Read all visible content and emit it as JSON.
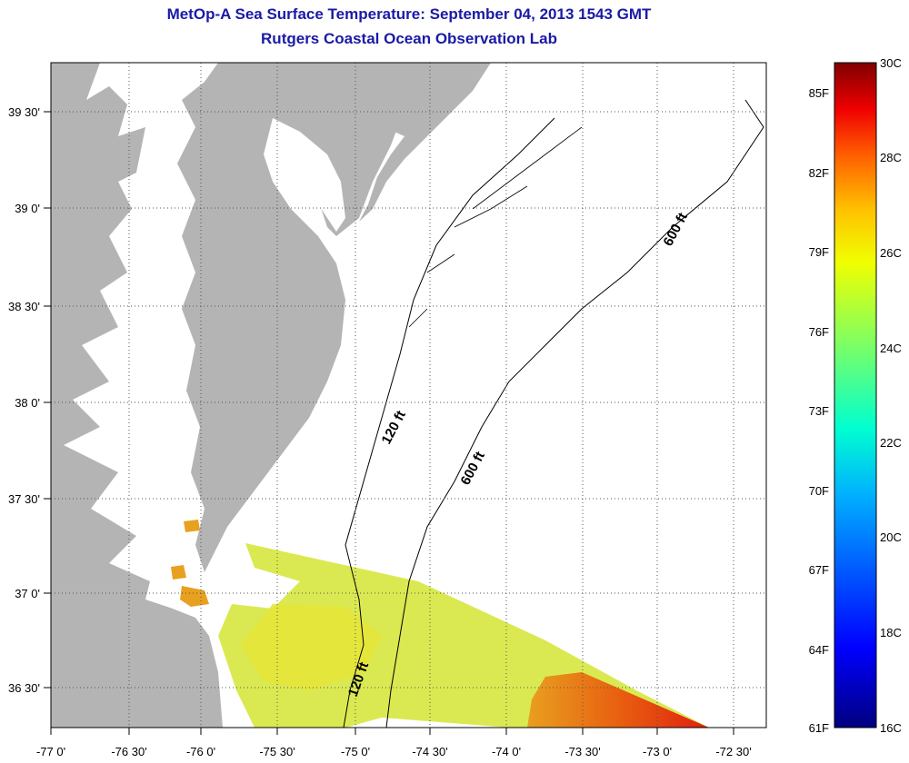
{
  "header": {
    "title": "MetOp-A Sea Surface Temperature:  September 04, 2013 1543 GMT",
    "subtitle": "Rutgers Coastal Ocean Observation Lab"
  },
  "map": {
    "lon_labels": [
      "-77 0'",
      "-76 30'",
      "-76 0'",
      "-75 30'",
      "-75 0'",
      "-74 30'",
      "-74 0'",
      "-73 30'",
      "-73 0'",
      "-72 30'"
    ],
    "lat_labels": [
      "39 30'",
      "39 0'",
      "38 30'",
      "38 0'",
      "37 30'",
      "37 0'",
      "36 30'"
    ],
    "isobath_labels": [
      "120 ft",
      "600 ft",
      "600 ft",
      "120 ft"
    ],
    "colors": {
      "land": "#b4b4b4",
      "water": "#ffffff",
      "grid": "#555555",
      "sst_band_warm": "#e8a020",
      "sst_band_yellow": "#dce840",
      "sst_band_hot": "#e03010"
    }
  },
  "colorbar": {
    "fahrenheit_labels": [
      "85F",
      "82F",
      "79F",
      "76F",
      "73F",
      "70F",
      "67F",
      "64F",
      "61F"
    ],
    "celsius_labels": [
      "30C",
      "28C",
      "26C",
      "24C",
      "22C",
      "20C",
      "18C",
      "16C"
    ]
  }
}
